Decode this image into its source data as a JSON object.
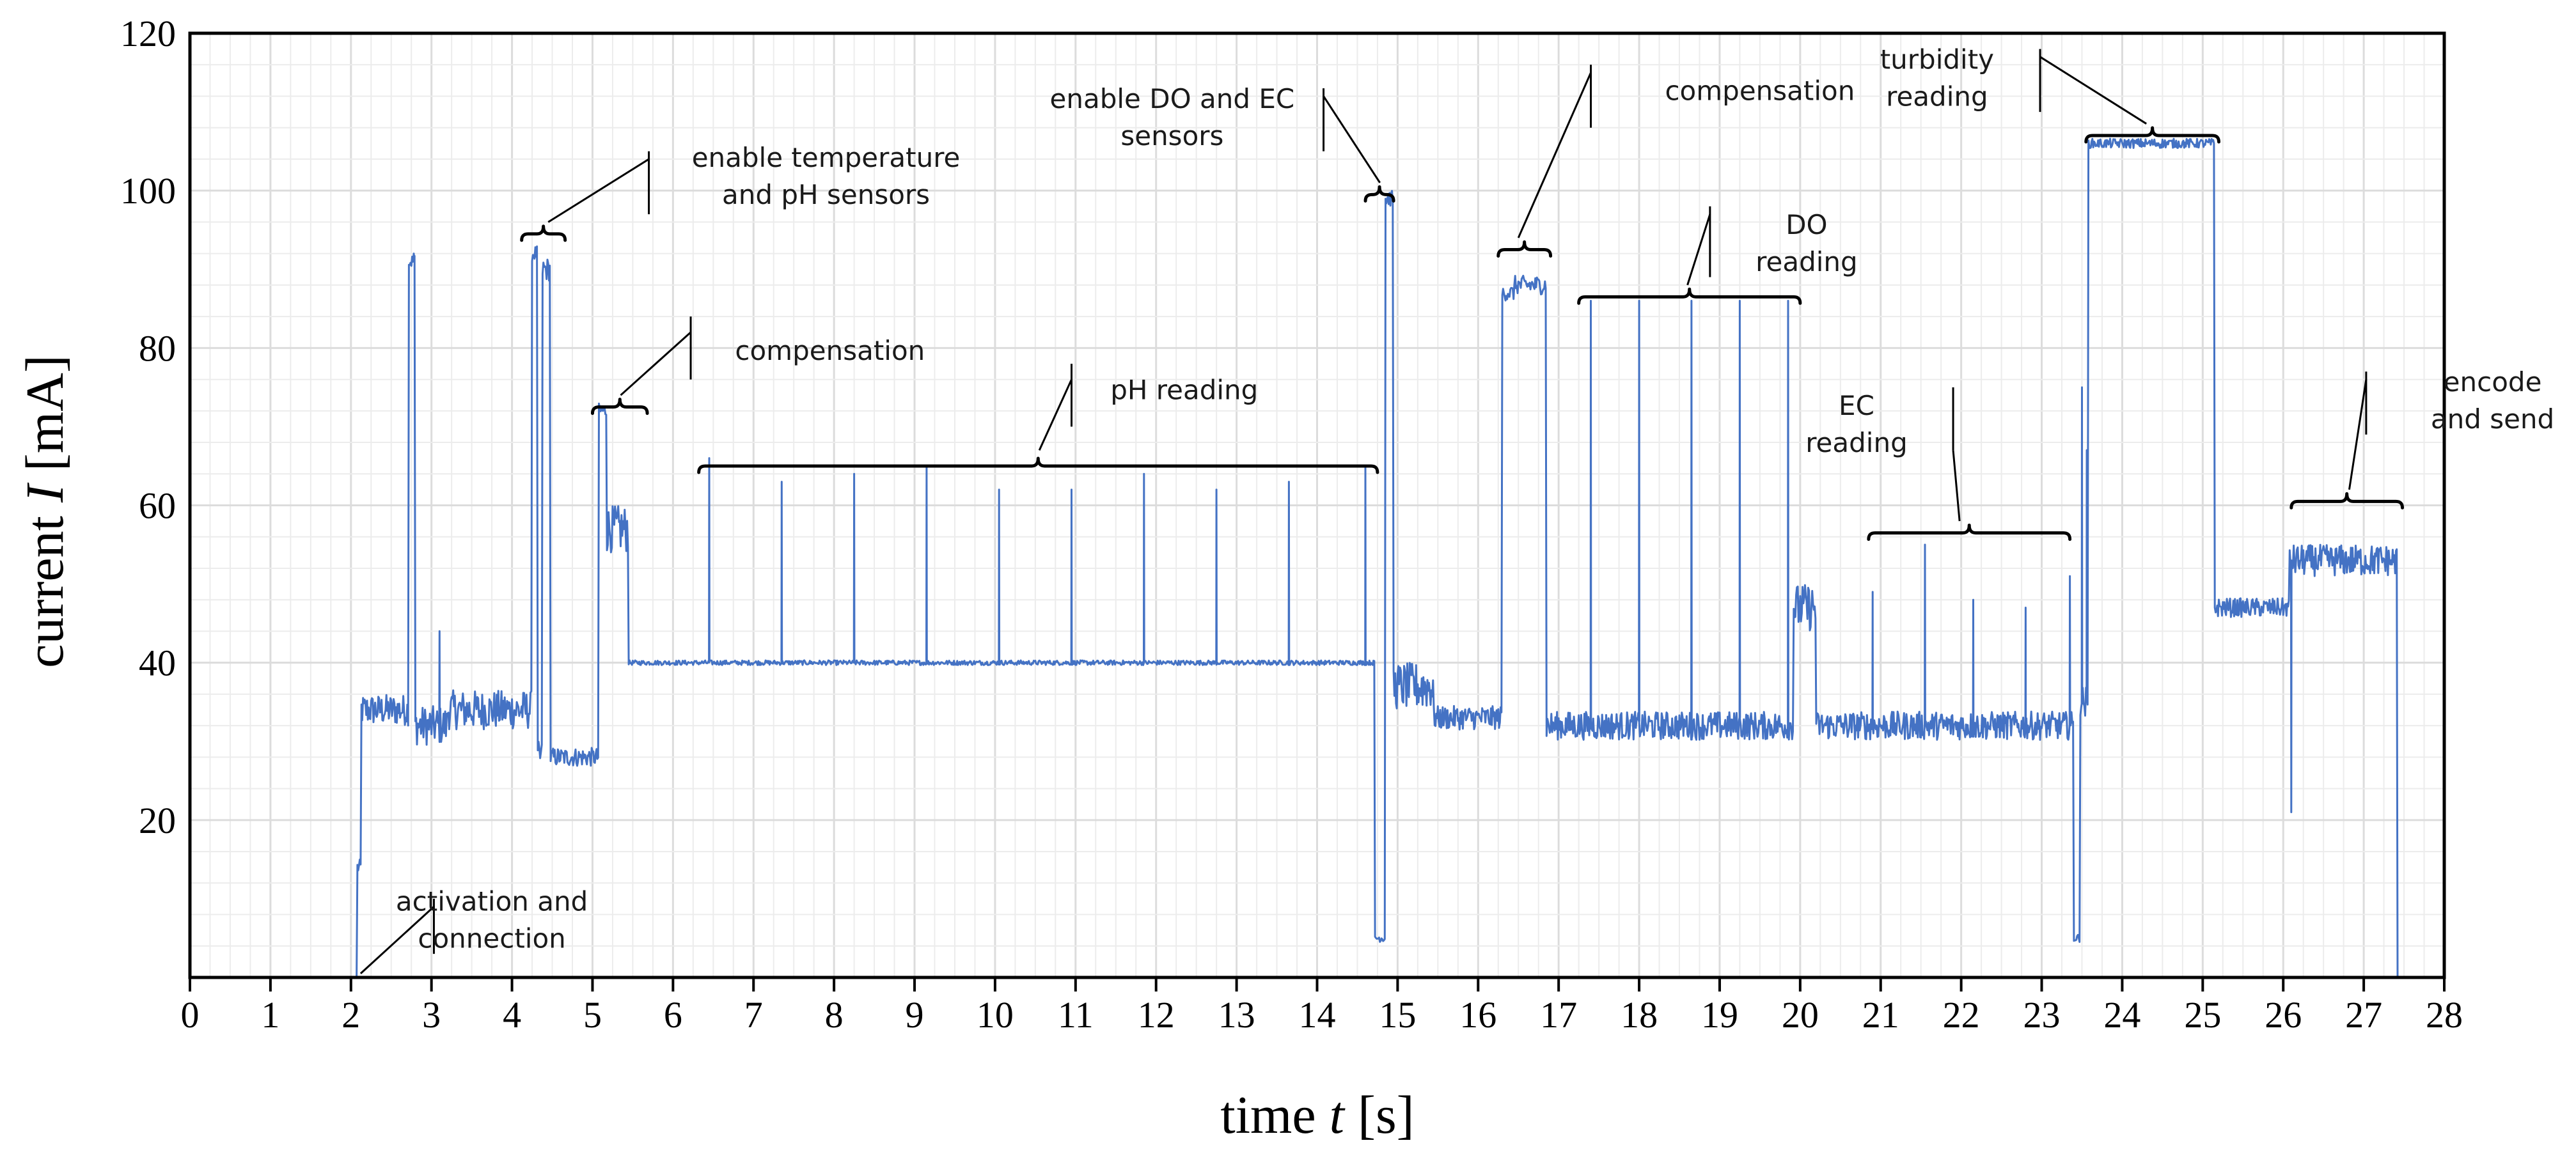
{
  "chart_data": {
    "type": "line",
    "title": "",
    "xlabel_prefix": "time ",
    "xlabel_var": "t",
    "xlabel_unit": " [s]",
    "ylabel_prefix": "current ",
    "ylabel_var": "I",
    "ylabel_unit": " [mA]",
    "xlim": [
      0,
      28
    ],
    "ylim": [
      0,
      120
    ],
    "x_ticks": [
      "0",
      "1",
      "2",
      "3",
      "4",
      "5",
      "6",
      "7",
      "8",
      "9",
      "10",
      "11",
      "12",
      "13",
      "14",
      "15",
      "16",
      "17",
      "18",
      "19",
      "20",
      "21",
      "22",
      "23",
      "24",
      "25",
      "26",
      "27",
      "28"
    ],
    "y_ticks": [
      "20",
      "40",
      "60",
      "80",
      "100",
      "120"
    ],
    "grid": true,
    "series": [
      {
        "name": "current",
        "color": "#4472c4",
        "segments": [
          {
            "x0": 0.0,
            "x1": 2.08,
            "level": 0,
            "noise": 0
          },
          {
            "x0": 2.08,
            "x1": 2.13,
            "level": 14,
            "noise": 1
          },
          {
            "x0": 2.13,
            "x1": 2.72,
            "level": 34,
            "noise": 2
          },
          {
            "x0": 2.72,
            "x1": 2.8,
            "level": 91,
            "noise": 1
          },
          {
            "x0": 2.8,
            "x1": 3.2,
            "level": 32,
            "noise": 2.5
          },
          {
            "x0": 3.2,
            "x1": 4.25,
            "level": 34,
            "noise": 2.5
          },
          {
            "x0": 4.25,
            "x1": 4.32,
            "level": 92,
            "noise": 1
          },
          {
            "x0": 4.32,
            "x1": 4.38,
            "level": 28,
            "noise": 2
          },
          {
            "x0": 4.38,
            "x1": 4.48,
            "level": 90,
            "noise": 1.5
          },
          {
            "x0": 4.48,
            "x1": 5.08,
            "level": 28,
            "noise": 1.2
          },
          {
            "x0": 5.08,
            "x1": 5.18,
            "level": 72,
            "noise": 1
          },
          {
            "x0": 5.18,
            "x1": 5.45,
            "level": 57,
            "noise": 3
          },
          {
            "x0": 5.45,
            "x1": 14.72,
            "level": 40,
            "noise": 0.3
          },
          {
            "x0": 14.72,
            "x1": 14.85,
            "level": 5,
            "noise": 0.5
          },
          {
            "x0": 14.85,
            "x1": 14.95,
            "level": 99,
            "noise": 1
          },
          {
            "x0": 14.95,
            "x1": 15.45,
            "level": 37,
            "noise": 3
          },
          {
            "x0": 15.45,
            "x1": 16.3,
            "level": 33,
            "noise": 1.5
          },
          {
            "x0": 16.3,
            "x1": 16.45,
            "level": 87,
            "noise": 1
          },
          {
            "x0": 16.45,
            "x1": 16.85,
            "level": 88,
            "noise": 1.2
          },
          {
            "x0": 16.85,
            "x1": 19.92,
            "level": 32,
            "noise": 1.8
          },
          {
            "x0": 19.92,
            "x1": 20.2,
            "level": 47,
            "noise": 3
          },
          {
            "x0": 20.2,
            "x1": 23.4,
            "level": 32,
            "noise": 1.8
          },
          {
            "x0": 23.4,
            "x1": 23.48,
            "level": 5,
            "noise": 0.5
          },
          {
            "x0": 23.48,
            "x1": 23.58,
            "level": 35,
            "noise": 2
          },
          {
            "x0": 23.58,
            "x1": 25.15,
            "level": 106,
            "noise": 0.6
          },
          {
            "x0": 25.15,
            "x1": 26.08,
            "level": 47,
            "noise": 1.2
          },
          {
            "x0": 26.08,
            "x1": 27.42,
            "level": 53,
            "noise": 2
          },
          {
            "x0": 27.42,
            "x1": 28.0,
            "level": 0,
            "noise": 0
          }
        ],
        "spikes": [
          {
            "x": 2.78,
            "y": 92
          },
          {
            "x": 3.1,
            "y": 44
          },
          {
            "x": 6.45,
            "y": 66
          },
          {
            "x": 7.35,
            "y": 63
          },
          {
            "x": 8.25,
            "y": 64
          },
          {
            "x": 9.15,
            "y": 65
          },
          {
            "x": 10.05,
            "y": 62
          },
          {
            "x": 10.95,
            "y": 62
          },
          {
            "x": 11.85,
            "y": 64
          },
          {
            "x": 12.75,
            "y": 62
          },
          {
            "x": 13.65,
            "y": 63
          },
          {
            "x": 14.6,
            "y": 65
          },
          {
            "x": 17.4,
            "y": 86
          },
          {
            "x": 18.0,
            "y": 86
          },
          {
            "x": 18.65,
            "y": 86
          },
          {
            "x": 19.25,
            "y": 86
          },
          {
            "x": 19.85,
            "y": 86
          },
          {
            "x": 20.9,
            "y": 49
          },
          {
            "x": 21.55,
            "y": 55
          },
          {
            "x": 22.15,
            "y": 48
          },
          {
            "x": 22.8,
            "y": 47
          },
          {
            "x": 23.35,
            "y": 51
          },
          {
            "x": 23.5,
            "y": 75
          },
          {
            "x": 23.56,
            "y": 67
          },
          {
            "x": 26.1,
            "y": 21
          }
        ]
      }
    ],
    "annotations": [
      {
        "key": "activation",
        "lines": [
          "activation and",
          "connection"
        ]
      },
      {
        "key": "enable_temp_ph",
        "lines": [
          "enable temperature",
          "and pH sensors"
        ]
      },
      {
        "key": "compensation_1",
        "lines": [
          "compensation"
        ]
      },
      {
        "key": "ph_reading",
        "lines": [
          "pH reading"
        ]
      },
      {
        "key": "enable_do_ec",
        "lines": [
          "enable DO and EC",
          "sensors"
        ]
      },
      {
        "key": "compensation_2",
        "lines": [
          "compensation"
        ]
      },
      {
        "key": "do_reading",
        "lines": [
          "DO",
          "reading"
        ]
      },
      {
        "key": "ec_reading",
        "lines": [
          "EC",
          "reading"
        ]
      },
      {
        "key": "turbidity_reading",
        "lines": [
          "turbidity",
          "reading"
        ]
      },
      {
        "key": "encode_send",
        "lines": [
          "encode",
          "and send"
        ]
      }
    ]
  }
}
